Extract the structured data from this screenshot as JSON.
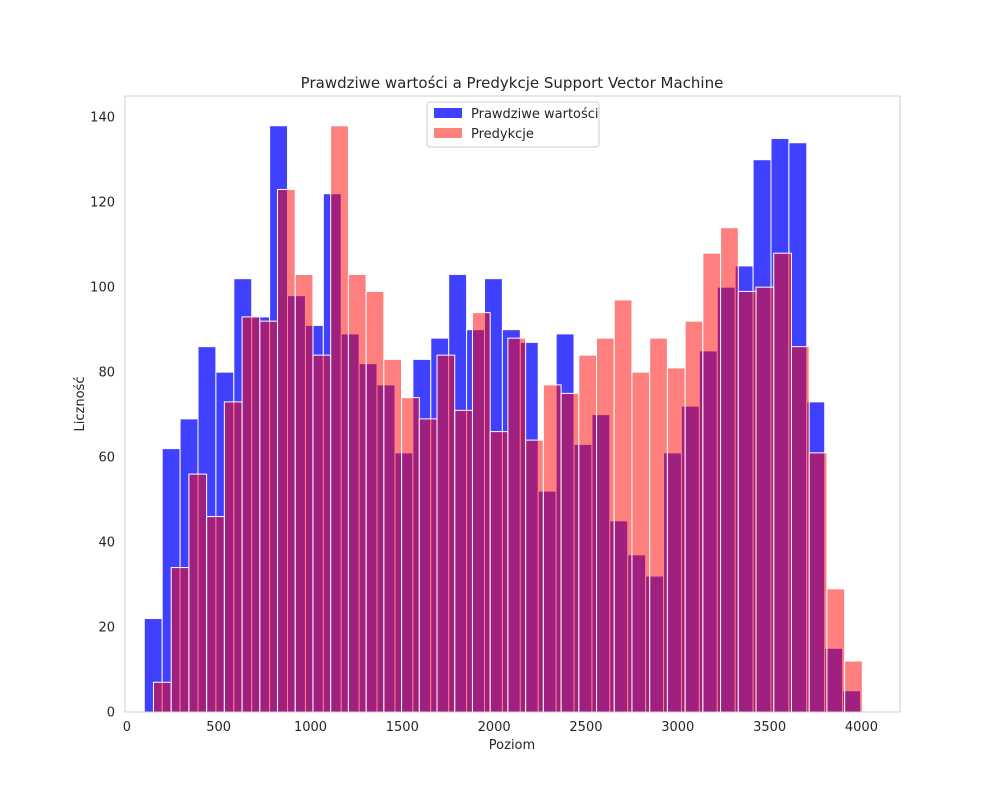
{
  "chart_data": {
    "type": "bar",
    "title": "Prawdziwe wartości a Predykcje Support Vector Machine",
    "xlabel": "Poziom",
    "ylabel": "Liczność",
    "xlim": [
      -10,
      4210
    ],
    "ylim": [
      0,
      145
    ],
    "xticks": [
      0,
      500,
      1000,
      1500,
      2000,
      2500,
      3000,
      3500,
      4000
    ],
    "yticks": [
      0,
      20,
      40,
      60,
      80,
      100,
      120,
      140
    ],
    "grid": false,
    "legend_position": "top-center",
    "series": [
      {
        "name": "Prawdziwe wartości",
        "color": "#0000ff",
        "opacity": 0.75,
        "bin_start": 95,
        "bin_width": 97.5,
        "values": [
          22,
          62,
          69,
          86,
          80,
          102,
          93,
          138,
          98,
          91,
          122,
          89,
          82,
          77,
          61,
          83,
          88,
          103,
          90,
          102,
          90,
          87,
          52,
          89,
          63,
          70,
          45,
          37,
          32,
          61,
          72,
          85,
          100,
          105,
          130,
          135,
          134,
          73,
          15,
          5
        ]
      },
      {
        "name": "Predykcje",
        "color": "#ff0000",
        "opacity": 0.5,
        "bin_start": 145,
        "bin_width": 96.5,
        "values": [
          7,
          34,
          56,
          46,
          73,
          93,
          92,
          123,
          103,
          84,
          138,
          103,
          99,
          83,
          74,
          69,
          84,
          71,
          94,
          66,
          88,
          64,
          77,
          75,
          84,
          88,
          97,
          80,
          88,
          81,
          92,
          108,
          114,
          99,
          100,
          108,
          86,
          61,
          29,
          12
        ]
      }
    ]
  }
}
